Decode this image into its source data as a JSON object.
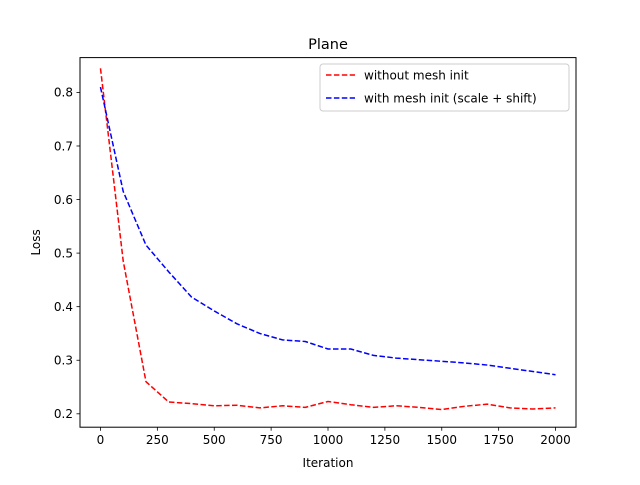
{
  "chart_data": {
    "type": "line",
    "title": "Plane",
    "xlabel": "Iteration",
    "ylabel": "Loss",
    "xlim": [
      -90,
      2090
    ],
    "ylim": [
      0.175,
      0.865
    ],
    "xticks": [
      0,
      250,
      500,
      750,
      1000,
      1250,
      1500,
      1750,
      2000
    ],
    "yticks": [
      0.2,
      0.3,
      0.4,
      0.5,
      0.6,
      0.7,
      0.8
    ],
    "ytick_labels": [
      "0.2",
      "0.3",
      "0.4",
      "0.5",
      "0.6",
      "0.7",
      "0.8"
    ],
    "grid": false,
    "legend_position": "top-right",
    "series": [
      {
        "name": "without mesh init",
        "color": "#ff0000",
        "line_style": "dashed",
        "x": [
          0,
          100,
          200,
          300,
          400,
          500,
          600,
          700,
          800,
          900,
          1000,
          1100,
          1200,
          1300,
          1400,
          1500,
          1600,
          1700,
          1800,
          1900,
          2000
        ],
        "y": [
          0.845,
          0.485,
          0.26,
          0.222,
          0.219,
          0.215,
          0.216,
          0.211,
          0.215,
          0.212,
          0.223,
          0.217,
          0.212,
          0.215,
          0.212,
          0.208,
          0.214,
          0.218,
          0.211,
          0.209,
          0.211
        ]
      },
      {
        "name": "with mesh init (scale + shift)",
        "color": "#0000ff",
        "line_style": "dashed",
        "x": [
          0,
          100,
          200,
          300,
          400,
          500,
          600,
          700,
          800,
          900,
          1000,
          1100,
          1200,
          1300,
          1400,
          1500,
          1600,
          1700,
          1800,
          1900,
          2000
        ],
        "y": [
          0.81,
          0.615,
          0.515,
          0.465,
          0.418,
          0.392,
          0.368,
          0.35,
          0.338,
          0.335,
          0.321,
          0.321,
          0.309,
          0.304,
          0.301,
          0.298,
          0.295,
          0.291,
          0.285,
          0.279,
          0.273
        ]
      }
    ]
  }
}
